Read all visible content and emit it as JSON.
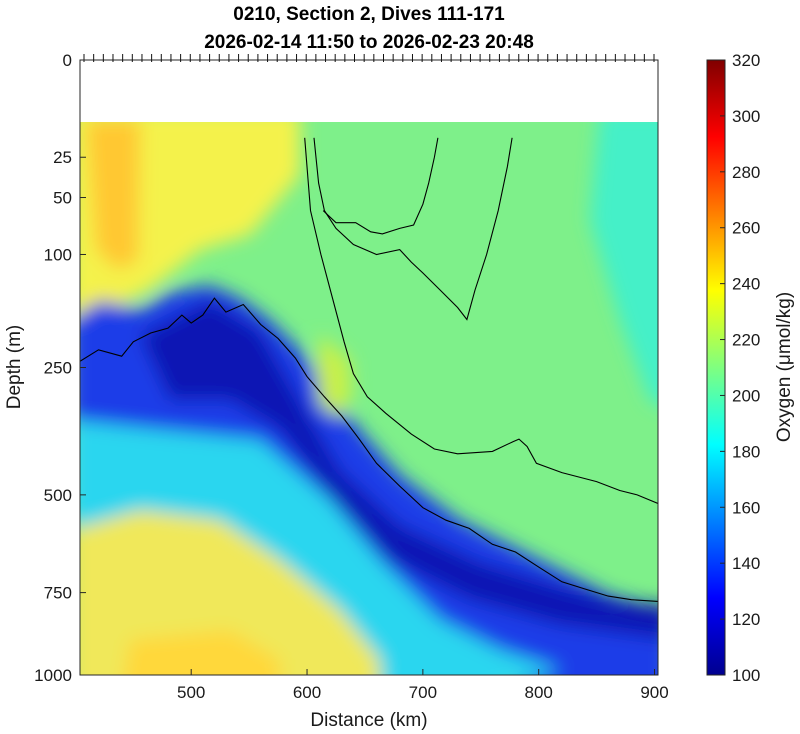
{
  "chart_data": {
    "type": "heatmap",
    "title_line1": "0210, Section 2, Dives 111-171",
    "title_line2": "2026-02-14 11:50 to 2026-02-23 20:48",
    "xlabel": "Distance (km)",
    "ylabel": "Depth (m)",
    "colorbar_label": "Oxygen (μmol/kg)",
    "xlim": [
      404,
      903
    ],
    "x_ticks": [
      500,
      600,
      700,
      800,
      900
    ],
    "y_scale": "square-root (depth)",
    "ylim": [
      0,
      1000
    ],
    "y_ticks": [
      0,
      25,
      50,
      100,
      250,
      500,
      750,
      1000
    ],
    "clim": [
      100,
      320
    ],
    "colorbar_ticks": [
      100,
      120,
      140,
      160,
      180,
      200,
      220,
      240,
      260,
      280,
      300,
      320
    ],
    "colormap": "jet",
    "no_data_above_depth_m": 16,
    "dive_marker_count": 60,
    "contour_lines": [
      {
        "name": "contour-upper",
        "points": [
          [
            598,
            16
          ],
          [
            603,
            60
          ],
          [
            612,
            100
          ],
          [
            622,
            150
          ],
          [
            632,
            210
          ],
          [
            640,
            260
          ],
          [
            652,
            300
          ],
          [
            668,
            330
          ],
          [
            690,
            370
          ],
          [
            710,
            400
          ],
          [
            730,
            410
          ],
          [
            760,
            405
          ],
          [
            778,
            385
          ],
          [
            783,
            380
          ],
          [
            790,
            395
          ],
          [
            798,
            430
          ],
          [
            820,
            450
          ],
          [
            850,
            470
          ],
          [
            870,
            490
          ],
          [
            885,
            500
          ],
          [
            903,
            520
          ]
        ]
      },
      {
        "name": "contour-lower",
        "points": [
          [
            404,
            240
          ],
          [
            420,
            222
          ],
          [
            440,
            232
          ],
          [
            450,
            210
          ],
          [
            465,
            197
          ],
          [
            480,
            190
          ],
          [
            492,
            172
          ],
          [
            500,
            183
          ],
          [
            510,
            172
          ],
          [
            520,
            150
          ],
          [
            530,
            168
          ],
          [
            545,
            158
          ],
          [
            560,
            185
          ],
          [
            575,
            205
          ],
          [
            590,
            235
          ],
          [
            600,
            265
          ],
          [
            615,
            300
          ],
          [
            630,
            335
          ],
          [
            645,
            380
          ],
          [
            660,
            430
          ],
          [
            680,
            480
          ],
          [
            700,
            530
          ],
          [
            720,
            560
          ],
          [
            740,
            580
          ],
          [
            760,
            620
          ],
          [
            780,
            640
          ],
          [
            800,
            680
          ],
          [
            820,
            720
          ],
          [
            840,
            740
          ],
          [
            860,
            760
          ],
          [
            880,
            770
          ],
          [
            903,
            775
          ]
        ]
      },
      {
        "name": "contour-tongue",
        "points": [
          [
            606,
            16
          ],
          [
            610,
            40
          ],
          [
            615,
            60
          ],
          [
            625,
            75
          ],
          [
            640,
            90
          ],
          [
            660,
            100
          ],
          [
            680,
            95
          ],
          [
            690,
            108
          ],
          [
            700,
            120
          ],
          [
            715,
            140
          ],
          [
            730,
            162
          ],
          [
            738,
            178
          ],
          [
            745,
            140
          ],
          [
            755,
            100
          ],
          [
            765,
            60
          ],
          [
            773,
            30
          ],
          [
            777,
            16
          ]
        ]
      },
      {
        "name": "contour-notch",
        "points": [
          [
            614,
            60
          ],
          [
            625,
            70
          ],
          [
            642,
            70
          ],
          [
            655,
            78
          ],
          [
            665,
            80
          ],
          [
            680,
            75
          ],
          [
            692,
            72
          ],
          [
            700,
            55
          ],
          [
            705,
            40
          ],
          [
            710,
            25
          ],
          [
            713,
            16
          ]
        ]
      }
    ]
  }
}
